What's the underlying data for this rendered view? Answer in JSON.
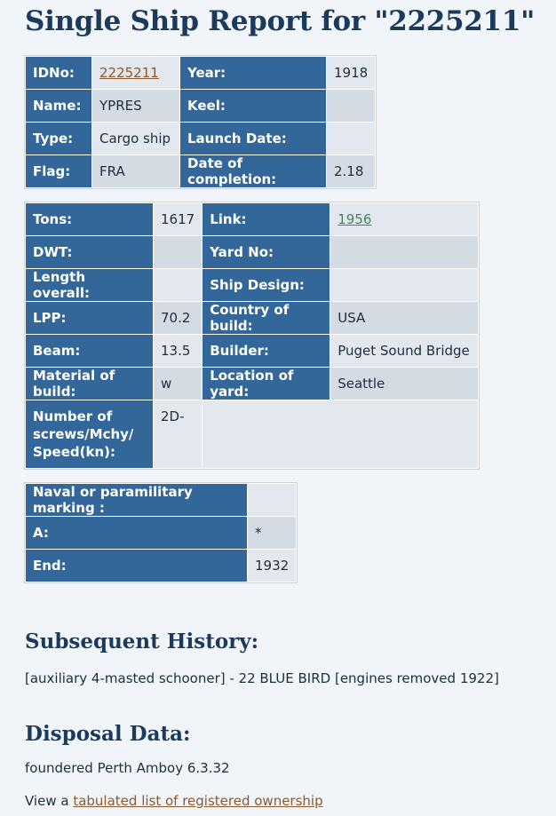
{
  "title": "Single Ship Report for \"2225211\"",
  "table1": {
    "idno_label": "IDNo:",
    "idno_value": "2225211",
    "year_label": "Year:",
    "year_value": "1918",
    "name_label": "Name:",
    "name_value": "YPRES",
    "keel_label": "Keel:",
    "keel_value": "",
    "type_label": "Type:",
    "type_value": "Cargo ship",
    "launch_label": "Launch Date:",
    "launch_value": "",
    "flag_label": "Flag:",
    "flag_value": "FRA",
    "completion_label": "Date of completion:",
    "completion_value": "2.18"
  },
  "table2": {
    "tons_label": "Tons:",
    "tons_value": "1617",
    "link_label": "Link:",
    "link_value": "1956",
    "dwt_label": "DWT:",
    "dwt_value": "",
    "yardno_label": "Yard No:",
    "yardno_value": "",
    "length_label": "Length overall:",
    "length_value": "",
    "design_label": "Ship Design:",
    "design_value": "",
    "lpp_label": "LPP:",
    "lpp_value": "70.2",
    "country_label": "Country of build:",
    "country_value": "USA",
    "beam_label": "Beam:",
    "beam_value": "13.5",
    "builder_label": "Builder:",
    "builder_value": "Puget Sound Bridge",
    "material_label": "Material of build:",
    "material_value": "w",
    "location_label": "Location of yard:",
    "location_value": "Seattle",
    "screws_label": "Number of screws/Mchy/ Speed(kn):",
    "screws_value": "2D-"
  },
  "table3": {
    "naval_label": "Naval or paramilitary marking :",
    "naval_value": "",
    "a_label": "A:",
    "a_value": "*",
    "end_label": "End:",
    "end_value": "1932"
  },
  "history": {
    "heading": "Subsequent History:",
    "text": "[auxiliary 4-masted schooner] - 22 BLUE BIRD [engines removed 1922]"
  },
  "disposal": {
    "heading": "Disposal Data:",
    "text": "foundered Perth Amboy 6.3.32",
    "view_prefix": "View a ",
    "view_link": "tabulated list of registered ownership"
  },
  "colors": {
    "label_bg": "#336699",
    "value_bg": "#e3e8ef",
    "heading": "#1b3a5c",
    "link_brown": "#8a5a2e",
    "link_green": "#3e8a5a"
  }
}
